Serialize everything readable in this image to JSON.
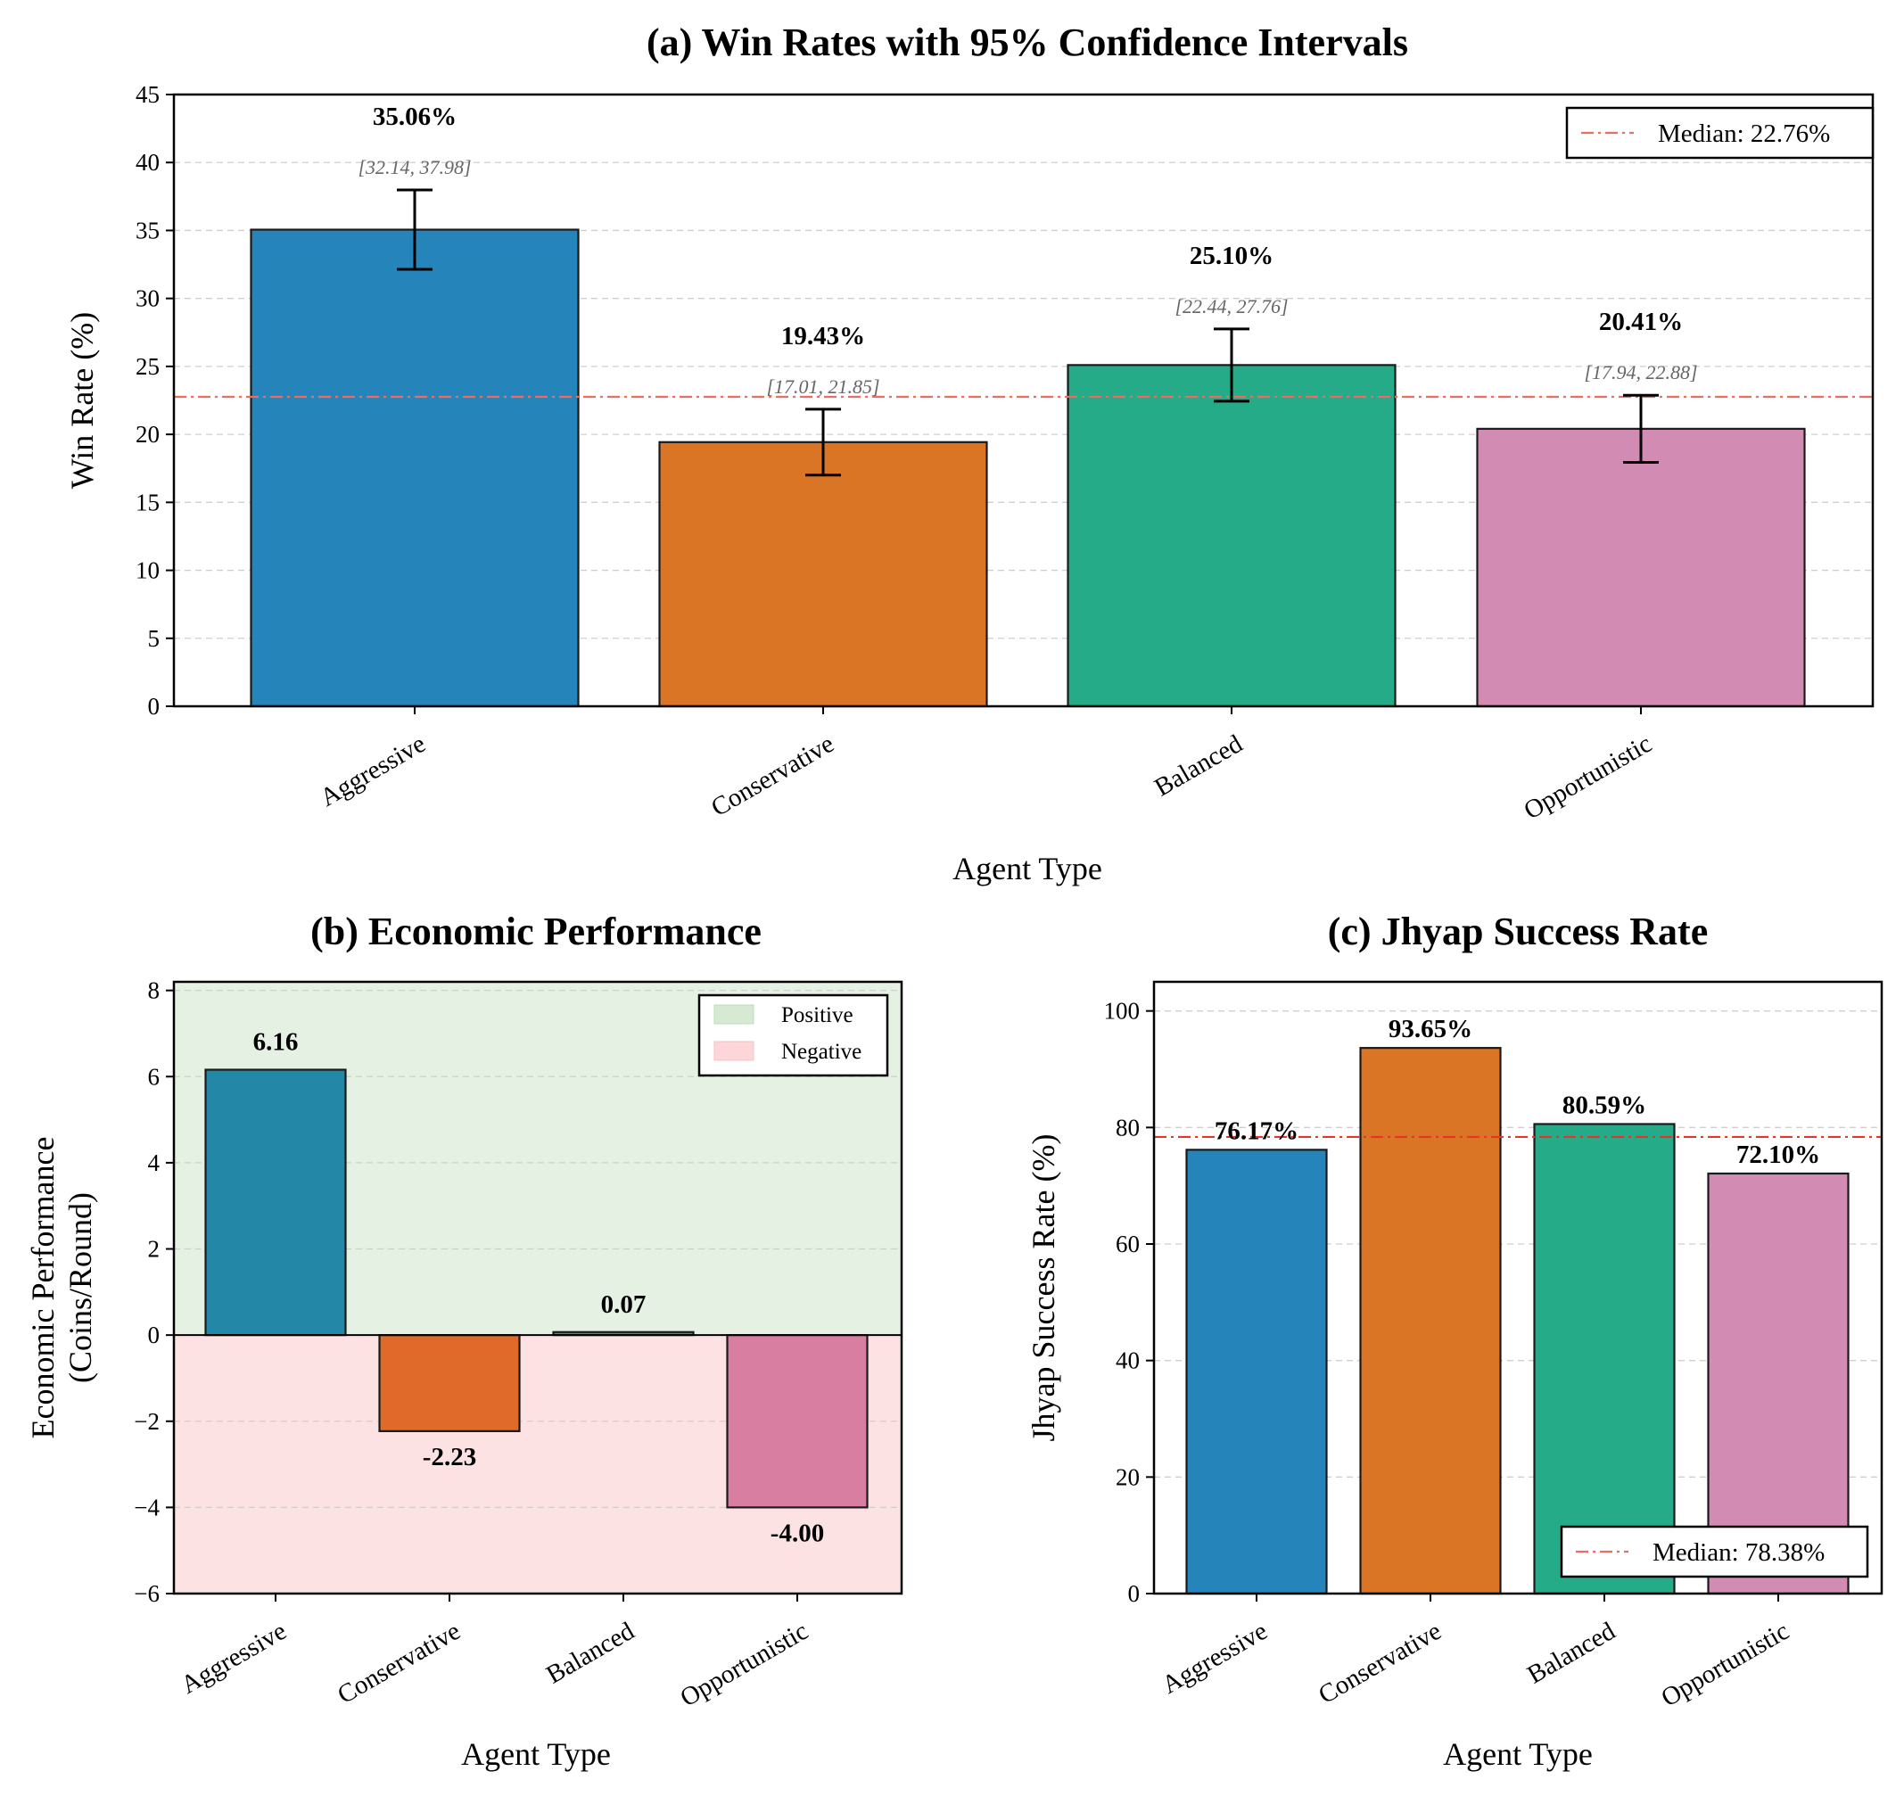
{
  "chart_data": [
    {
      "id": "a",
      "type": "bar",
      "title": "(a) Win Rates with 95% Confidence Intervals",
      "xlabel": "Agent Type",
      "ylabel": "Win Rate (%)",
      "categories": [
        "Aggressive",
        "Conservative",
        "Balanced",
        "Opportunistic"
      ],
      "values": [
        35.06,
        19.43,
        25.1,
        20.41
      ],
      "value_labels": [
        "35.06%",
        "19.43%",
        "25.10%",
        "20.41%"
      ],
      "ci_low": [
        32.14,
        17.01,
        22.44,
        17.94
      ],
      "ci_high": [
        37.98,
        21.85,
        27.76,
        22.88
      ],
      "ci_labels": [
        "[32.14, 37.98]",
        "[17.01, 21.85]",
        "[22.44, 27.76]",
        "[17.94, 22.88]"
      ],
      "ylim": [
        0,
        45
      ],
      "yticks": [
        0,
        5,
        10,
        15,
        20,
        25,
        30,
        35,
        40,
        45
      ],
      "median": 22.76,
      "legend": "Median: 22.76%",
      "legend_position": "top-right",
      "grid": true,
      "colors": [
        "#2585bb",
        "#da7526",
        "#26ab88",
        "#d28bb3"
      ]
    },
    {
      "id": "b",
      "type": "bar",
      "title": "(b) Economic Performance",
      "xlabel": "Agent Type",
      "ylabel": [
        "Economic Performance",
        "(Coins/Round)"
      ],
      "categories": [
        "Aggressive",
        "Conservative",
        "Balanced",
        "Opportunistic"
      ],
      "values": [
        6.16,
        -2.23,
        0.07,
        -4.0
      ],
      "value_labels": [
        "6.16",
        "-2.23",
        "0.07",
        "-4.00"
      ],
      "ylim": [
        -6,
        8.2
      ],
      "yticks": [
        -6,
        -4,
        -2,
        0,
        2,
        4,
        6,
        8
      ],
      "ytick_labels": [
        "−6",
        "−4",
        "−2",
        "0",
        "2",
        "4",
        "6",
        "8"
      ],
      "legend": [
        "Positive",
        "Negative"
      ],
      "legend_position": "top-right",
      "grid": true,
      "colors": [
        "#2388a8",
        "#df6a2a",
        "#27a27e",
        "#d87ea1"
      ],
      "region_colors": {
        "positive": "#e5f1e3",
        "negative": "#fde2e4"
      }
    },
    {
      "id": "c",
      "type": "bar",
      "title": "(c) Jhyap Success Rate",
      "xlabel": "Agent Type",
      "ylabel": "Jhyap Success Rate (%)",
      "categories": [
        "Aggressive",
        "Conservative",
        "Balanced",
        "Opportunistic"
      ],
      "values": [
        76.17,
        93.65,
        80.59,
        72.1
      ],
      "value_labels": [
        "76.17%",
        "93.65%",
        "80.59%",
        "72.10%"
      ],
      "ylim": [
        0,
        105
      ],
      "yticks": [
        0,
        20,
        40,
        60,
        80,
        100
      ],
      "median": 78.38,
      "legend": "Median: 78.38%",
      "legend_position": "bottom-right",
      "grid": true,
      "colors": [
        "#2585bb",
        "#da7526",
        "#26ab88",
        "#d28bb3"
      ]
    }
  ]
}
